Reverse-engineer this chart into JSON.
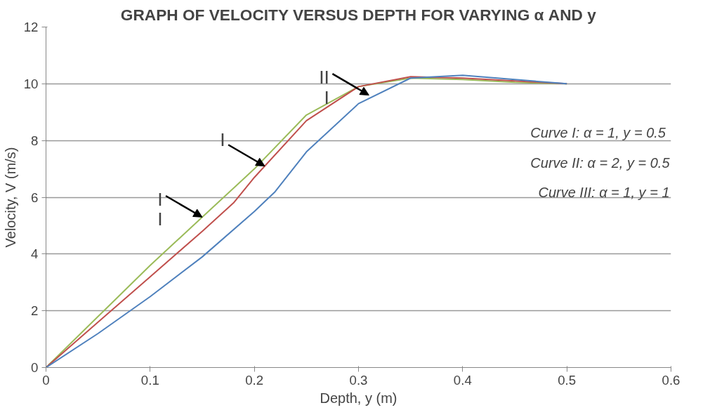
{
  "chart_data": {
    "type": "line",
    "title": "GRAPH OF VELOCITY VERSUS DEPTH FOR VARYING α AND y",
    "xlabel": "Depth, y (m)",
    "ylabel": "Velocity, V (m/s)",
    "xlim": [
      0,
      0.6
    ],
    "xticks": [
      0,
      0.1,
      0.2,
      0.3,
      0.4,
      0.5,
      0.6
    ],
    "ylim": [
      0,
      12
    ],
    "yticks": [
      0,
      2,
      4,
      6,
      8,
      10,
      12
    ],
    "grid": "y",
    "series": [
      {
        "color": "#9bbb59",
        "x": [
          0,
          0.05,
          0.1,
          0.15,
          0.2,
          0.25,
          0.3,
          0.35,
          0.4,
          0.45,
          0.5
        ],
        "values": [
          0,
          1.8,
          3.6,
          5.3,
          7.0,
          8.9,
          9.9,
          10.2,
          10.15,
          10.05,
          10.0
        ]
      },
      {
        "color": "#c0504d",
        "x": [
          0,
          0.05,
          0.1,
          0.15,
          0.18,
          0.2,
          0.25,
          0.3,
          0.35,
          0.4,
          0.45,
          0.5
        ],
        "values": [
          0,
          1.6,
          3.2,
          4.8,
          5.8,
          6.7,
          8.7,
          9.9,
          10.25,
          10.2,
          10.1,
          10.0
        ]
      },
      {
        "color": "#4f81bd",
        "x": [
          0,
          0.05,
          0.1,
          0.15,
          0.2,
          0.22,
          0.25,
          0.3,
          0.35,
          0.4,
          0.45,
          0.5
        ],
        "values": [
          0,
          1.2,
          2.5,
          3.9,
          5.5,
          6.2,
          7.6,
          9.3,
          10.2,
          10.3,
          10.15,
          10.0
        ]
      }
    ],
    "annotations": [
      {
        "text": "I\nI",
        "x": 0.15,
        "y": 5.3
      },
      {
        "text": "I",
        "x": 0.21,
        "y": 7.1
      },
      {
        "text": "II\nI",
        "x": 0.31,
        "y": 9.6
      },
      "Curve I:  α = 1, y = 0.5",
      "Curve II: α = 2, y = 0.5",
      "Curve III: α = 1, y = 1"
    ]
  }
}
